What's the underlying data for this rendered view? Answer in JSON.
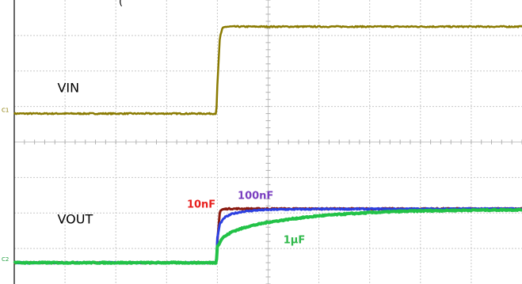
{
  "chart_data": {
    "type": "line",
    "title": "",
    "title_fragment": "(",
    "xlabel": "",
    "ylabel": "",
    "grid": true,
    "channel_markers": [
      "C1",
      "C2"
    ],
    "xlim": [
      0,
      10
    ],
    "ylim": [
      0,
      8
    ],
    "annotations": [
      {
        "text": "VIN",
        "x": 0.85,
        "y": 5.4
      },
      {
        "text": "VOUT",
        "x": 0.85,
        "y": 1.7
      },
      {
        "text": "10nF",
        "x": 3.4,
        "y": 2.15,
        "color": "#e8201e"
      },
      {
        "text": "100nF",
        "x": 4.4,
        "y": 2.4,
        "color": "#7a3fc0"
      },
      {
        "text": "1µF",
        "x": 5.3,
        "y": 1.15,
        "color": "#2fb84a"
      }
    ],
    "series": [
      {
        "color": "#8a7a00",
        "x": [
          0,
          3.98,
          4.0,
          4.05,
          4.1,
          4.15,
          4.2,
          10
        ],
        "y": [
          4.8,
          4.8,
          5.6,
          6.95,
          7.2,
          7.24,
          7.25,
          7.25
        ]
      },
      {
        "color": "#8a1a10",
        "x": [
          0,
          3.98,
          4.0,
          4.05,
          4.1,
          4.2,
          10
        ],
        "y": [
          0.6,
          0.6,
          1.2,
          2.05,
          2.1,
          2.12,
          2.12
        ]
      },
      {
        "color": "#2b3fe0",
        "x": [
          0,
          3.98,
          4.0,
          4.05,
          4.15,
          4.3,
          4.5,
          4.8,
          5.2,
          6.0,
          10
        ],
        "y": [
          0.6,
          0.6,
          1.3,
          1.7,
          1.88,
          1.98,
          2.04,
          2.08,
          2.1,
          2.11,
          2.12
        ]
      },
      {
        "color": "#22c247",
        "x": [
          0,
          3.98,
          4.0,
          4.1,
          4.3,
          4.6,
          5.0,
          5.5,
          6.0,
          6.5,
          7.0,
          7.5,
          8.0,
          9.0,
          10
        ],
        "y": [
          0.6,
          0.6,
          1.05,
          1.3,
          1.48,
          1.62,
          1.74,
          1.84,
          1.92,
          1.97,
          2.01,
          2.04,
          2.06,
          2.08,
          2.09
        ]
      }
    ],
    "colors": {
      "grid": "#c8c8c8",
      "border": "#000000",
      "background": "#ffffff",
      "vin": "#8a7a00"
    }
  }
}
